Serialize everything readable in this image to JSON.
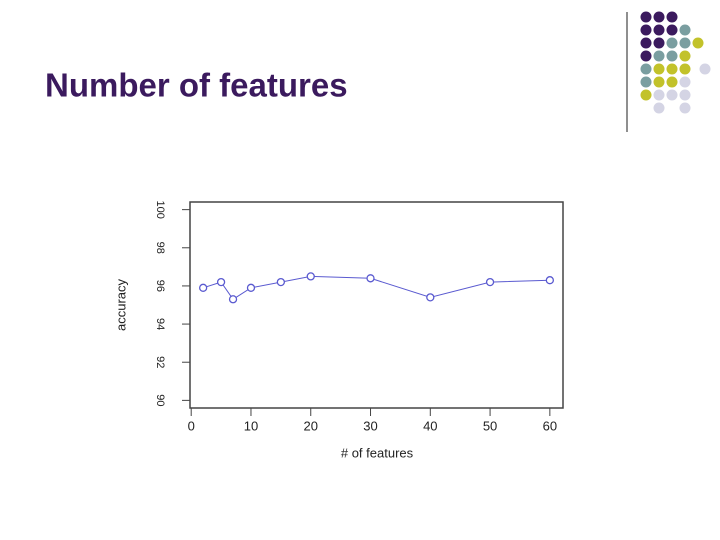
{
  "slide_title": "Number of features",
  "chart_data": {
    "type": "line",
    "x_label": "# of features",
    "y_label": "accuracy",
    "x": [
      2,
      5,
      7,
      10,
      15,
      20,
      30,
      40,
      50,
      60
    ],
    "values": [
      95.9,
      96.2,
      95.3,
      95.9,
      96.2,
      96.5,
      96.4,
      95.4,
      96.2,
      96.3
    ],
    "color": "#5a5ad0",
    "xlim": [
      -0.2,
      62.2
    ],
    "xticks": [
      0,
      10,
      20,
      30,
      40,
      50,
      60
    ],
    "ylim": [
      89.6,
      100.4
    ],
    "yticks": [
      90,
      92,
      94,
      96,
      98,
      100
    ]
  }
}
